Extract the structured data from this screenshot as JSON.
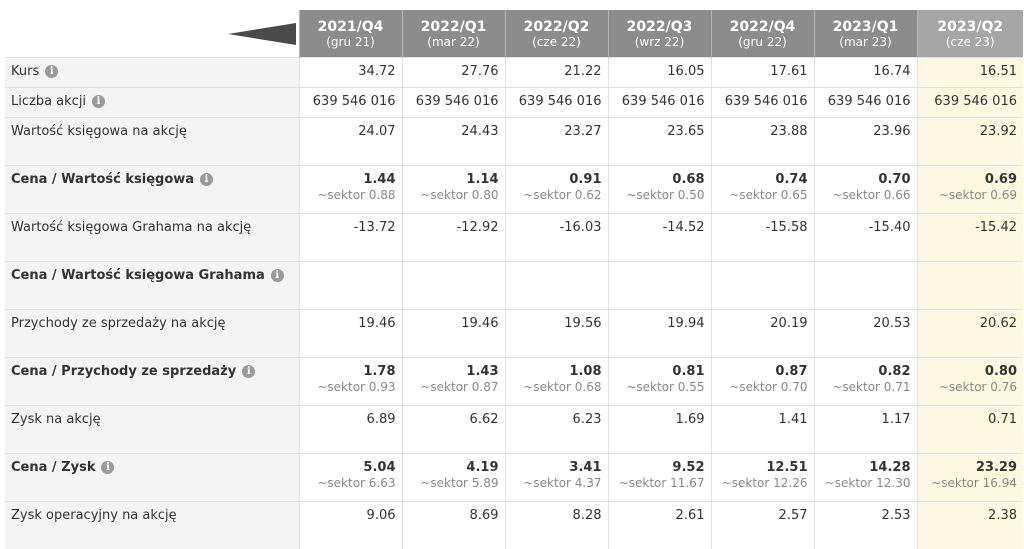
{
  "quarters": [
    {
      "title": "2021/Q4",
      "sub": "(gru 21)"
    },
    {
      "title": "2022/Q1",
      "sub": "(mar 22)"
    },
    {
      "title": "2022/Q2",
      "sub": "(cze 22)"
    },
    {
      "title": "2022/Q3",
      "sub": "(wrz 22)"
    },
    {
      "title": "2022/Q4",
      "sub": "(gru 22)"
    },
    {
      "title": "2023/Q1",
      "sub": "(mar 23)"
    },
    {
      "title": "2023/Q2",
      "sub": "(cze 23)"
    }
  ],
  "rows": [
    {
      "label": "Kurs",
      "info": true,
      "bold": false,
      "tall": false,
      "values": [
        "34.72",
        "27.76",
        "21.22",
        "16.05",
        "17.61",
        "16.74",
        "16.51"
      ],
      "sectors": []
    },
    {
      "label": "Liczba akcji",
      "info": true,
      "bold": false,
      "tall": false,
      "values": [
        "639 546 016",
        "639 546 016",
        "639 546 016",
        "639 546 016",
        "639 546 016",
        "639 546 016",
        "639 546 016"
      ],
      "sectors": []
    },
    {
      "label": "Wartość księgowa na akcję",
      "info": false,
      "bold": false,
      "tall": true,
      "values": [
        "24.07",
        "24.43",
        "23.27",
        "23.65",
        "23.88",
        "23.96",
        "23.92"
      ],
      "sectors": []
    },
    {
      "label": "Cena / Wartość księgowa",
      "info": true,
      "bold": true,
      "tall": true,
      "values": [
        "1.44",
        "1.14",
        "0.91",
        "0.68",
        "0.74",
        "0.70",
        "0.69"
      ],
      "sectors": [
        "~sektor 0.88",
        "~sektor 0.80",
        "~sektor 0.62",
        "~sektor 0.50",
        "~sektor 0.65",
        "~sektor 0.66",
        "~sektor 0.69"
      ]
    },
    {
      "label": "Wartość księgowa Grahama na akcję",
      "info": false,
      "bold": false,
      "tall": true,
      "values": [
        "-13.72",
        "-12.92",
        "-16.03",
        "-14.52",
        "-15.58",
        "-15.40",
        "-15.42"
      ],
      "sectors": []
    },
    {
      "label": "Cena / Wartość księgowa Grahama",
      "info": true,
      "bold": true,
      "tall": true,
      "values": [
        "",
        "",
        "",
        "",
        "",
        "",
        ""
      ],
      "sectors": []
    },
    {
      "label": "Przychody ze sprzedaży na akcję",
      "info": false,
      "bold": false,
      "tall": true,
      "values": [
        "19.46",
        "19.46",
        "19.56",
        "19.94",
        "20.19",
        "20.53",
        "20.62"
      ],
      "sectors": []
    },
    {
      "label": "Cena / Przychody ze sprzedaży",
      "info": true,
      "bold": true,
      "tall": true,
      "values": [
        "1.78",
        "1.43",
        "1.08",
        "0.81",
        "0.87",
        "0.82",
        "0.80"
      ],
      "sectors": [
        "~sektor 0.93",
        "~sektor 0.87",
        "~sektor 0.68",
        "~sektor 0.55",
        "~sektor 0.70",
        "~sektor 0.71",
        "~sektor 0.76"
      ]
    },
    {
      "label": "Zysk na akcję",
      "info": false,
      "bold": false,
      "tall": true,
      "values": [
        "6.89",
        "6.62",
        "6.23",
        "1.69",
        "1.41",
        "1.17",
        "0.71"
      ],
      "sectors": []
    },
    {
      "label": "Cena / Zysk",
      "info": true,
      "bold": true,
      "tall": true,
      "values": [
        "5.04",
        "4.19",
        "3.41",
        "9.52",
        "12.51",
        "14.28",
        "23.29"
      ],
      "sectors": [
        "~sektor 6.63",
        "~sektor 5.89",
        "~sektor 4.37",
        "~sektor 11.67",
        "~sektor 12.26",
        "~sektor 12.30",
        "~sektor 16.94"
      ]
    },
    {
      "label": "Zysk operacyjny na akcję",
      "info": false,
      "bold": false,
      "tall": true,
      "values": [
        "9.06",
        "8.69",
        "8.28",
        "2.61",
        "2.57",
        "2.53",
        "2.38"
      ],
      "sectors": []
    }
  ],
  "icons": {
    "info": "info-icon",
    "scroll": "scroll-left-arrow-icon"
  },
  "colors": {
    "header": "#8c8c8c",
    "header_current": "#a6a6a6",
    "label_bg": "#f4f4f4",
    "current_bg": "#fdf8df"
  }
}
